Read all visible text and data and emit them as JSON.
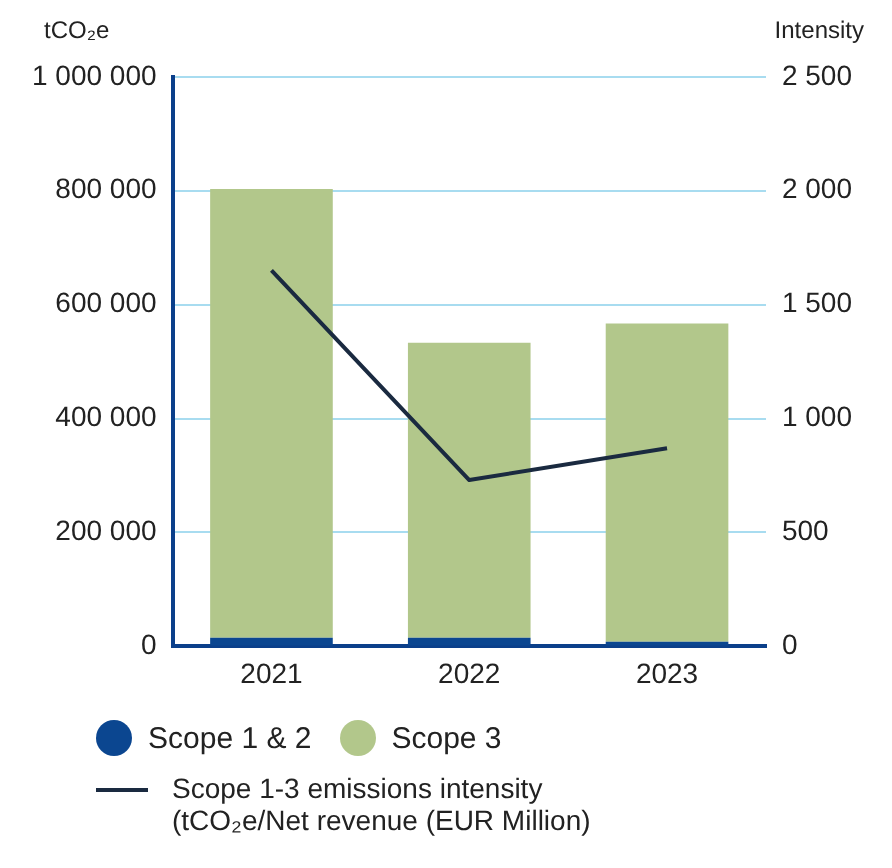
{
  "chart_data": {
    "type": "bar",
    "ylabel": "tCO₂e",
    "y2label": "Intensity",
    "categories": [
      "2021",
      "2022",
      "2023"
    ],
    "stacked": true,
    "series": [
      {
        "name": "Scope 1 & 2",
        "color": "#0b4690",
        "values": [
          15000,
          15000,
          8000
        ]
      },
      {
        "name": "Scope 3",
        "color": "#b2c78b",
        "values": [
          788000,
          518000,
          559000
        ]
      },
      {
        "name": "Scope 1-3 emissions intensity (tCO₂e/Net revenue (EUR Million)",
        "type": "line",
        "axis": "y2",
        "color": "#1a2a40",
        "values": [
          1650,
          730,
          870
        ]
      }
    ],
    "ylim": [
      0,
      1000000
    ],
    "yticks": [
      {
        "value": 0,
        "label": "0"
      },
      {
        "value": 200000,
        "label": "200 000"
      },
      {
        "value": 400000,
        "label": "400 000"
      },
      {
        "value": 600000,
        "label": "600 000"
      },
      {
        "value": 800000,
        "label": "800 000"
      },
      {
        "value": 1000000,
        "label": "1 000 000"
      }
    ],
    "y2lim": [
      0,
      2500
    ],
    "y2ticks": [
      0,
      500,
      {
        "value": 1000,
        "label": "1 000"
      },
      {
        "value": 1500,
        "label": "1 500"
      },
      {
        "value": 2000,
        "label": "2 000"
      },
      {
        "value": 2500,
        "label": "2 500"
      }
    ],
    "grid": "y",
    "legend": "bottom",
    "marker": "none",
    "line_style": "solid"
  }
}
